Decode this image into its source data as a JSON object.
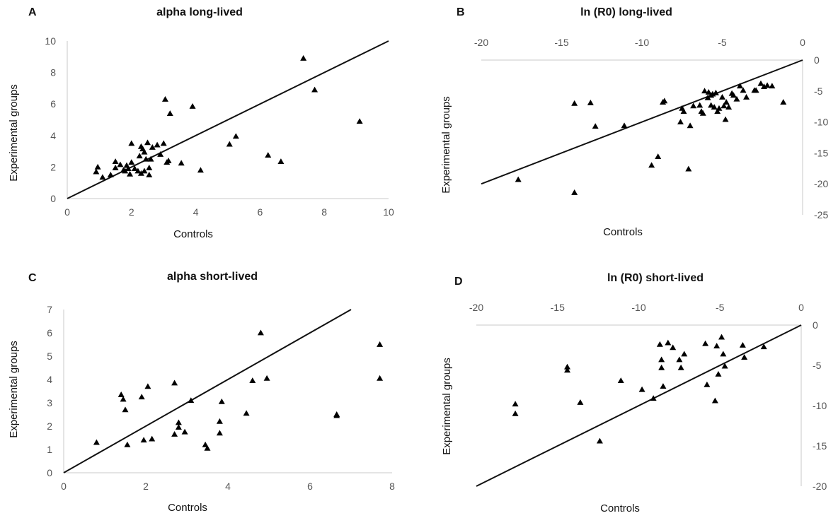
{
  "chart_data": [
    {
      "panel": "A",
      "type": "scatter",
      "title": "alpha long-lived",
      "xlabel": "Controls",
      "ylabel": "Experimental groups",
      "xlim": [
        0,
        10
      ],
      "ylim": [
        0,
        10
      ],
      "xticks": [
        "0",
        "2",
        "4",
        "6",
        "8",
        "10"
      ],
      "yticks": [
        "0",
        "2",
        "4",
        "6",
        "8",
        "10"
      ],
      "reference_line": [
        [
          0,
          0
        ],
        [
          10,
          10
        ]
      ],
      "marker": "triangle",
      "points": [
        [
          0.9,
          1.7
        ],
        [
          0.95,
          2.0
        ],
        [
          1.1,
          1.35
        ],
        [
          1.35,
          1.5
        ],
        [
          1.5,
          1.95
        ],
        [
          1.5,
          2.35
        ],
        [
          1.65,
          2.15
        ],
        [
          1.75,
          1.8
        ],
        [
          1.8,
          1.75
        ],
        [
          1.85,
          2.1
        ],
        [
          1.9,
          1.9
        ],
        [
          1.95,
          1.55
        ],
        [
          2.0,
          2.3
        ],
        [
          2.0,
          3.5
        ],
        [
          2.1,
          1.9
        ],
        [
          2.2,
          1.75
        ],
        [
          2.25,
          2.7
        ],
        [
          2.3,
          1.6
        ],
        [
          2.3,
          3.3
        ],
        [
          2.35,
          3.15
        ],
        [
          2.4,
          2.95
        ],
        [
          2.4,
          1.75
        ],
        [
          2.45,
          2.5
        ],
        [
          2.5,
          3.55
        ],
        [
          2.55,
          1.95
        ],
        [
          2.55,
          1.5
        ],
        [
          2.6,
          2.5
        ],
        [
          2.65,
          3.25
        ],
        [
          2.8,
          3.4
        ],
        [
          2.9,
          2.8
        ],
        [
          3.0,
          3.5
        ],
        [
          3.05,
          6.3
        ],
        [
          3.1,
          2.3
        ],
        [
          3.15,
          2.4
        ],
        [
          3.2,
          5.4
        ],
        [
          3.55,
          2.25
        ],
        [
          3.9,
          5.85
        ],
        [
          4.15,
          1.8
        ],
        [
          5.05,
          3.45
        ],
        [
          5.25,
          3.95
        ],
        [
          6.25,
          2.75
        ],
        [
          6.65,
          2.35
        ],
        [
          7.35,
          8.9
        ],
        [
          7.7,
          6.9
        ],
        [
          9.1,
          4.9
        ]
      ]
    },
    {
      "panel": "B",
      "type": "scatter",
      "title": "ln (R0) long-lived",
      "xlabel": "Controls",
      "ylabel": "Experimental groups",
      "xlim": [
        -20,
        0
      ],
      "ylim": [
        -25,
        0
      ],
      "xticks": [
        "-20",
        "-15",
        "-10",
        "-5",
        "0"
      ],
      "yticks": [
        "0",
        "-5",
        "-10",
        "-15",
        "-20",
        "-25"
      ],
      "reference_line": [
        [
          -20,
          -20
        ],
        [
          0,
          0
        ]
      ],
      "marker": "triangle",
      "points": [
        [
          -17.7,
          -19.3
        ],
        [
          -14.2,
          -21.4
        ],
        [
          -14.2,
          -7.0
        ],
        [
          -13.2,
          -6.9
        ],
        [
          -12.9,
          -10.7
        ],
        [
          -11.1,
          -10.6
        ],
        [
          -9.4,
          -17.0
        ],
        [
          -9.0,
          -15.6
        ],
        [
          -8.7,
          -6.8
        ],
        [
          -8.6,
          -6.6
        ],
        [
          -7.6,
          -10.0
        ],
        [
          -7.5,
          -7.8
        ],
        [
          -7.4,
          -8.3
        ],
        [
          -7.1,
          -17.6
        ],
        [
          -7.0,
          -10.6
        ],
        [
          -6.8,
          -7.4
        ],
        [
          -6.4,
          -7.3
        ],
        [
          -6.3,
          -8.3
        ],
        [
          -6.2,
          -8.6
        ],
        [
          -6.1,
          -5.0
        ],
        [
          -5.9,
          -6.1
        ],
        [
          -5.85,
          -5.2
        ],
        [
          -5.7,
          -7.3
        ],
        [
          -5.7,
          -5.7
        ],
        [
          -5.6,
          -5.5
        ],
        [
          -5.5,
          -7.6
        ],
        [
          -5.4,
          -5.3
        ],
        [
          -5.3,
          -8.3
        ],
        [
          -5.2,
          -7.8
        ],
        [
          -5.0,
          -6.0
        ],
        [
          -4.9,
          -7.4
        ],
        [
          -4.8,
          -9.6
        ],
        [
          -4.75,
          -6.8
        ],
        [
          -4.6,
          -7.6
        ],
        [
          -4.4,
          -5.4
        ],
        [
          -4.3,
          -5.7
        ],
        [
          -4.1,
          -6.3
        ],
        [
          -3.9,
          -4.2
        ],
        [
          -3.7,
          -4.9
        ],
        [
          -3.5,
          -6.0
        ],
        [
          -3.0,
          -4.9
        ],
        [
          -2.9,
          -4.9
        ],
        [
          -2.6,
          -3.8
        ],
        [
          -2.4,
          -4.3
        ],
        [
          -2.2,
          -4.1
        ],
        [
          -1.9,
          -4.2
        ],
        [
          -1.2,
          -6.8
        ]
      ]
    },
    {
      "panel": "C",
      "type": "scatter",
      "title": "alpha short-lived",
      "xlabel": "Controls",
      "ylabel": "Experimental groups",
      "xlim": [
        0,
        8
      ],
      "ylim": [
        0,
        7
      ],
      "xticks": [
        "0",
        "2",
        "4",
        "6",
        "8"
      ],
      "yticks": [
        "0",
        "1",
        "2",
        "3",
        "4",
        "5",
        "6",
        "7"
      ],
      "reference_line": [
        [
          0,
          0
        ],
        [
          7,
          7
        ]
      ],
      "marker": "triangle",
      "points": [
        [
          0.8,
          1.3
        ],
        [
          1.4,
          3.35
        ],
        [
          1.45,
          3.15
        ],
        [
          1.5,
          2.7
        ],
        [
          1.55,
          1.2
        ],
        [
          1.9,
          3.25
        ],
        [
          1.95,
          1.4
        ],
        [
          2.05,
          3.7
        ],
        [
          2.15,
          1.45
        ],
        [
          2.7,
          3.85
        ],
        [
          2.7,
          1.65
        ],
        [
          2.8,
          1.95
        ],
        [
          2.8,
          2.15
        ],
        [
          2.95,
          1.75
        ],
        [
          3.1,
          3.1
        ],
        [
          3.45,
          1.2
        ],
        [
          3.5,
          1.05
        ],
        [
          3.8,
          1.7
        ],
        [
          3.8,
          2.2
        ],
        [
          3.85,
          3.05
        ],
        [
          4.45,
          2.55
        ],
        [
          4.6,
          3.95
        ],
        [
          4.8,
          6.0
        ],
        [
          4.95,
          4.05
        ],
        [
          6.65,
          2.5
        ],
        [
          6.65,
          2.45
        ],
        [
          7.7,
          5.5
        ],
        [
          7.7,
          4.05
        ]
      ]
    },
    {
      "panel": "D",
      "type": "scatter",
      "title": "ln (R0) short-lived",
      "xlabel": "Controls",
      "ylabel": "Experimental groups",
      "xlim": [
        -20,
        0
      ],
      "ylim": [
        -20,
        0
      ],
      "xticks": [
        "-20",
        "-15",
        "-10",
        "-5",
        "0"
      ],
      "yticks": [
        "0",
        "-5",
        "-10",
        "-15",
        "-20"
      ],
      "reference_line": [
        [
          -20,
          -20
        ],
        [
          0,
          0
        ]
      ],
      "marker": "triangle",
      "points": [
        [
          -17.6,
          -9.8
        ],
        [
          -17.6,
          -11.0
        ],
        [
          -14.4,
          -5.2
        ],
        [
          -14.4,
          -5.6
        ],
        [
          -13.6,
          -9.6
        ],
        [
          -12.4,
          -14.4
        ],
        [
          -11.1,
          -6.9
        ],
        [
          -9.8,
          -8.0
        ],
        [
          -9.1,
          -9.1
        ],
        [
          -8.7,
          -2.4
        ],
        [
          -8.6,
          -4.3
        ],
        [
          -8.6,
          -5.3
        ],
        [
          -8.5,
          -7.6
        ],
        [
          -8.2,
          -2.2
        ],
        [
          -7.9,
          -2.8
        ],
        [
          -7.5,
          -4.3
        ],
        [
          -7.4,
          -5.3
        ],
        [
          -7.2,
          -3.6
        ],
        [
          -5.9,
          -2.3
        ],
        [
          -5.8,
          -7.4
        ],
        [
          -5.3,
          -9.4
        ],
        [
          -5.2,
          -2.6
        ],
        [
          -5.1,
          -6.1
        ],
        [
          -4.9,
          -1.5
        ],
        [
          -4.8,
          -3.6
        ],
        [
          -4.7,
          -5.1
        ],
        [
          -3.6,
          -2.5
        ],
        [
          -3.5,
          -4.0
        ],
        [
          -2.3,
          -2.7
        ]
      ]
    }
  ],
  "panel_labels": [
    "A",
    "B",
    "C",
    "D"
  ]
}
